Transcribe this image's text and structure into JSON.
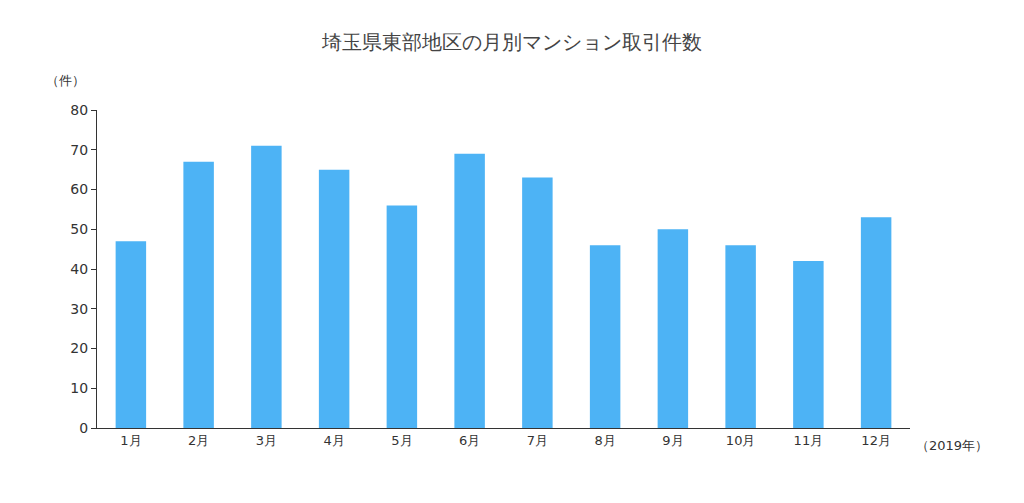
{
  "chart_data": {
    "type": "bar",
    "title": "埼玉県東部地区の月別マンション取引件数",
    "ylabel": "（件）",
    "xlabel": "（2019年）",
    "categories": [
      "1月",
      "2月",
      "3月",
      "4月",
      "5月",
      "6月",
      "7月",
      "8月",
      "9月",
      "10月",
      "11月",
      "12月"
    ],
    "values": [
      47,
      67,
      71,
      65,
      56,
      69,
      63,
      46,
      50,
      46,
      42,
      53
    ],
    "color": "#4db3f5",
    "ylim": [
      0,
      80
    ],
    "yticks": [
      0,
      10,
      20,
      30,
      40,
      50,
      60,
      70,
      80
    ],
    "grid": false
  }
}
